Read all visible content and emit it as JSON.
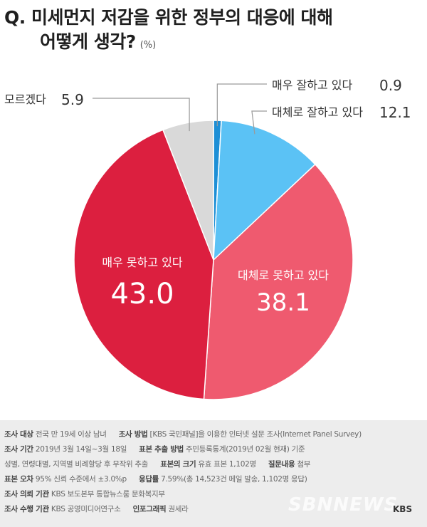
{
  "title": {
    "line1": "Q. 미세먼지 저감을 위한 정부의 대응에 대해",
    "line2": "어떻게 생각?",
    "unit": "(%)"
  },
  "chart_data": {
    "type": "pie",
    "slices": [
      {
        "label": "매우 잘하고 있다",
        "value": 0.9,
        "color": "#1d8fd6"
      },
      {
        "label": "대체로 잘하고 있다",
        "value": 12.1,
        "color": "#5bc2f5"
      },
      {
        "label": "대체로 못하고 있다",
        "value": 38.1,
        "color": "#ef5a6f"
      },
      {
        "label": "매우 못하고 있다",
        "value": 43.0,
        "color": "#dc1f3f"
      },
      {
        "label": "모르겠다",
        "value": 5.9,
        "color": "#d9d9d9"
      }
    ],
    "value_labels": [
      "0.9",
      "12.1",
      "38.1",
      "43.0",
      "5.9"
    ]
  },
  "footer": {
    "survey_target_label": "조사 대상",
    "survey_target": "전국 만 19세 이상 남녀",
    "survey_method_label": "조사 방법",
    "survey_method": "[KBS 국민패널]을 이용한 인터넷 설문 조사(Internet Panel Survey)",
    "period_label": "조사 기간",
    "period": "2019년 3월 14일~3월 18일",
    "sampling_label": "표본 추출 방법",
    "sampling": "주민등록통계(2019년 02월 현재) 기준",
    "sampling_detail": "성별, 연령대별, 지역별 비례할당 후 무작위 추출",
    "sample_size_label": "표본의 크기",
    "sample_size": "유효 표본 1,102명",
    "questionnaire_label": "질문내용",
    "questionnaire": "첨부",
    "error_label": "표본 오차",
    "error": "95% 신뢰 수준에서 ±3.0%p",
    "response_label": "응답률",
    "response": "7.59%(총 14,523건 메일 발송, 1,102명 응답)",
    "client_label": "조사 의뢰 기관",
    "client": "KBS 보도본부 통합뉴스룸 문화복지부",
    "agency_label": "조사 수행 기관",
    "agency": "KBS 공영미디어연구소",
    "graphic_label": "인포그래픽",
    "graphic": "권세라",
    "watermark": "SBNNEWS",
    "logo": "KBS"
  }
}
